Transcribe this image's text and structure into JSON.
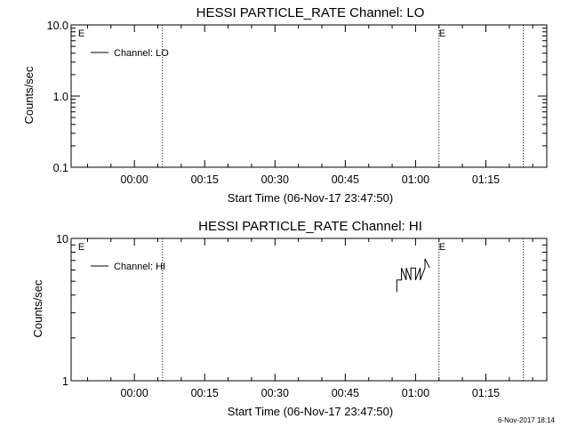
{
  "colors": {
    "background": "#ffffff",
    "ink": "#000000"
  },
  "chart_data": [
    {
      "type": "line",
      "title": "HESSI PARTICLE_RATE Channel: LO",
      "xlabel": "Start Time (06-Nov-17 23:47:50)",
      "ylabel": "Counts/sec",
      "yscale": "log",
      "xlim_minutes": [
        -13.5,
        88.0
      ],
      "x_ticks": [
        "00:00",
        "00:15",
        "00:30",
        "00:45",
        "01:00",
        "01:15"
      ],
      "ylim": [
        0.1,
        10.0
      ],
      "y_ticks": [
        "0.1",
        "1.0",
        "10.0"
      ],
      "vlines": [
        "00:06",
        "01:05",
        "01:23"
      ],
      "markers": [
        {
          "label": "E",
          "at": "-00:12"
        },
        {
          "label": "E",
          "at": "01:05"
        }
      ],
      "legend_placement": "top-left",
      "series": [
        {
          "name": "Channel: LO",
          "x": [],
          "y": []
        }
      ]
    },
    {
      "type": "line",
      "title": "HESSI PARTICLE_RATE Channel: HI",
      "xlabel": "Start Time (06-Nov-17 23:47:50)",
      "ylabel": "Counts/sec",
      "yscale": "log",
      "xlim_minutes": [
        -13.5,
        88.0
      ],
      "x_ticks": [
        "00:00",
        "00:15",
        "00:30",
        "00:45",
        "01:00",
        "01:15"
      ],
      "ylim": [
        1,
        10
      ],
      "y_ticks": [
        "1",
        "10"
      ],
      "vlines": [
        "00:06",
        "01:05",
        "01:23"
      ],
      "markers": [
        {
          "label": "E",
          "at": "-00:12"
        },
        {
          "label": "E",
          "at": "01:05"
        }
      ],
      "legend_placement": "top-left",
      "series": [
        {
          "name": "Channel: HI",
          "x": [
            "00:56",
            "00:56",
            "00:57",
            "00:57",
            "00:58",
            "00:58",
            "00:59",
            "00:59",
            "01:00",
            "01:00",
            "01:01",
            "01:01",
            "01:02",
            "01:02",
            "01:02",
            "01:03"
          ],
          "y": [
            4.2,
            5.1,
            5.1,
            6.2,
            5.1,
            6.2,
            5.1,
            6.2,
            6.2,
            5.1,
            6.2,
            5.1,
            6.2,
            6.2,
            7.2,
            6.2
          ]
        }
      ]
    }
  ],
  "footer": {
    "timestamp": "6-Nov-2017 18:14"
  }
}
